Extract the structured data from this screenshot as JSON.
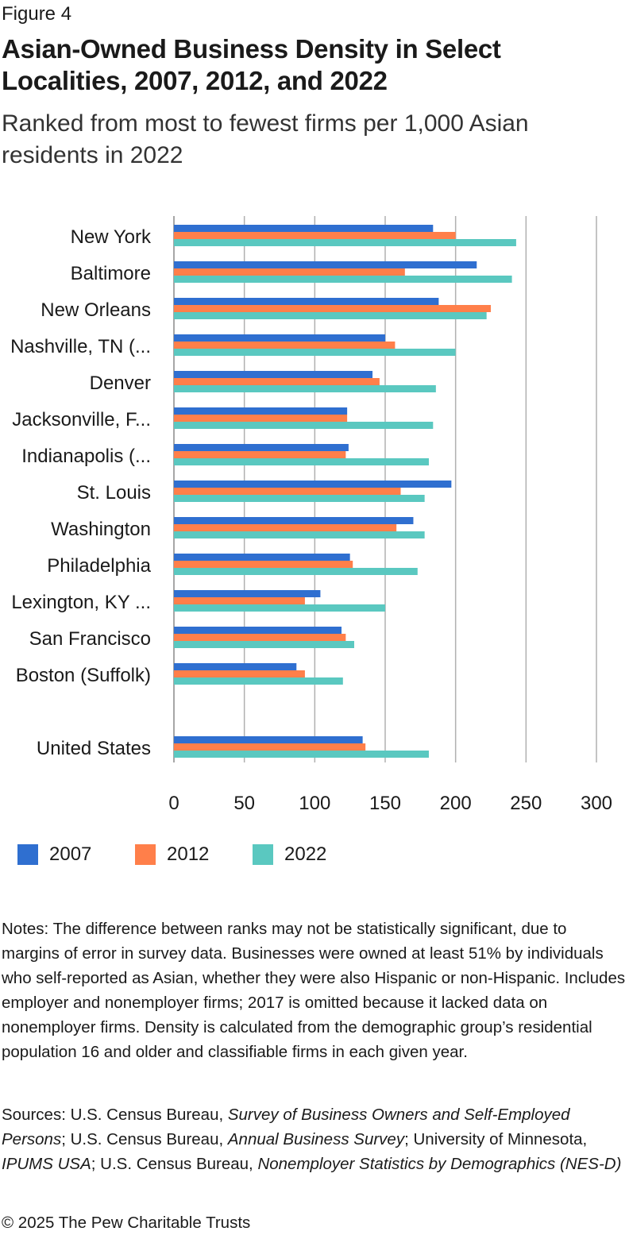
{
  "figure_label": "Figure 4",
  "chart_data": {
    "type": "bar",
    "orientation": "horizontal",
    "title": "Asian-Owned Business Density in Select Localities, 2007, 2012, and 2022",
    "subtitle": "Ranked from most to fewest firms per 1,000 Asian residents in 2022",
    "categories": [
      "New York",
      "Baltimore",
      "New Orleans",
      "Nashville, TN (...",
      "Denver",
      "Jacksonville, F...",
      "Indianapolis (...",
      "St. Louis",
      "Washington",
      "Philadelphia",
      "Lexington, KY ...",
      "San Francisco",
      "Boston (Suffolk)",
      "",
      "United States"
    ],
    "series": [
      {
        "name": "2007",
        "color": "#2f6fd0",
        "values": [
          184,
          215,
          188,
          150,
          141,
          123,
          124,
          197,
          170,
          125,
          104,
          119,
          87,
          null,
          134
        ]
      },
      {
        "name": "2012",
        "color": "#ff7f4a",
        "values": [
          200,
          164,
          225,
          157,
          146,
          123,
          122,
          161,
          158,
          127,
          93,
          122,
          93,
          null,
          136
        ]
      },
      {
        "name": "2022",
        "color": "#5ac8c0",
        "values": [
          243,
          240,
          222,
          200,
          186,
          184,
          181,
          178,
          178,
          173,
          150,
          128,
          120,
          null,
          181
        ]
      }
    ],
    "xlim": [
      0,
      300
    ],
    "xticks": [
      "0",
      "50",
      "100",
      "150",
      "200",
      "250",
      "300"
    ],
    "grid": true,
    "legend_position": "bottom-left"
  },
  "notes": "Notes: The difference between ranks may not be statistically significant, due to margins of error in survey data. Businesses were owned at least 51% by individuals who self-reported as Asian, whether they were also Hispanic or non-Hispanic. Includes employer and nonemployer firms; 2017 is omitted because it lacked data on nonemployer firms. Density is calculated from the demographic group’s residential population 16 and older and classifiable firms in each given year.",
  "sources": {
    "prefix": "Sources: U.S. Census Bureau, ",
    "s1": "Survey of Business Owners and Self-Employed Persons",
    "sep1": "; U.S. Census Bureau, ",
    "s2": "Annual Business Survey",
    "sep2": "; University of Minnesota, ",
    "s3": "IPUMS USA",
    "sep3": "; U.S. Census Bureau, ",
    "s4": "Nonemployer Statistics by Demographics (NES-D)"
  },
  "copyright": "© 2025 The Pew Charitable Trusts"
}
